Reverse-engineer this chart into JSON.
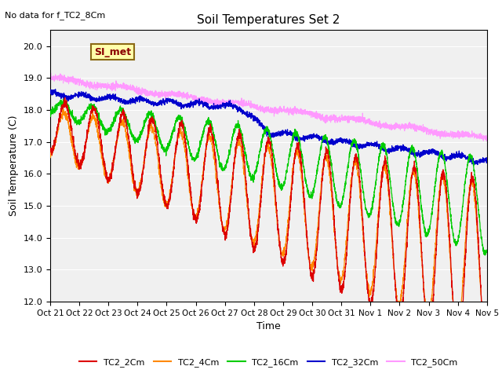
{
  "title": "Soil Temperatures Set 2",
  "xlabel": "Time",
  "ylabel": "Soil Temperature (C)",
  "top_left_text": "No data for f_TC2_8Cm",
  "annotation_box": "SI_met",
  "ylim": [
    12.0,
    20.5
  ],
  "yticks": [
    12.0,
    13.0,
    14.0,
    15.0,
    16.0,
    17.0,
    18.0,
    19.0,
    20.0
  ],
  "xtick_labels": [
    "Oct 21",
    "Oct 22",
    "Oct 23",
    "Oct 24",
    "Oct 25",
    "Oct 26",
    "Oct 27",
    "Oct 28",
    "Oct 29",
    "Oct 30",
    "Oct 31",
    "Nov 1",
    "Nov 2",
    "Nov 3",
    "Nov 4",
    "Nov 5"
  ],
  "series_colors": {
    "TC2_2Cm": "#dd0000",
    "TC2_4Cm": "#ff8800",
    "TC2_16Cm": "#00cc00",
    "TC2_32Cm": "#0000cc",
    "TC2_50Cm": "#ff99ff"
  },
  "plot_bg_color": "#f0f0f0",
  "n_points": 3360
}
